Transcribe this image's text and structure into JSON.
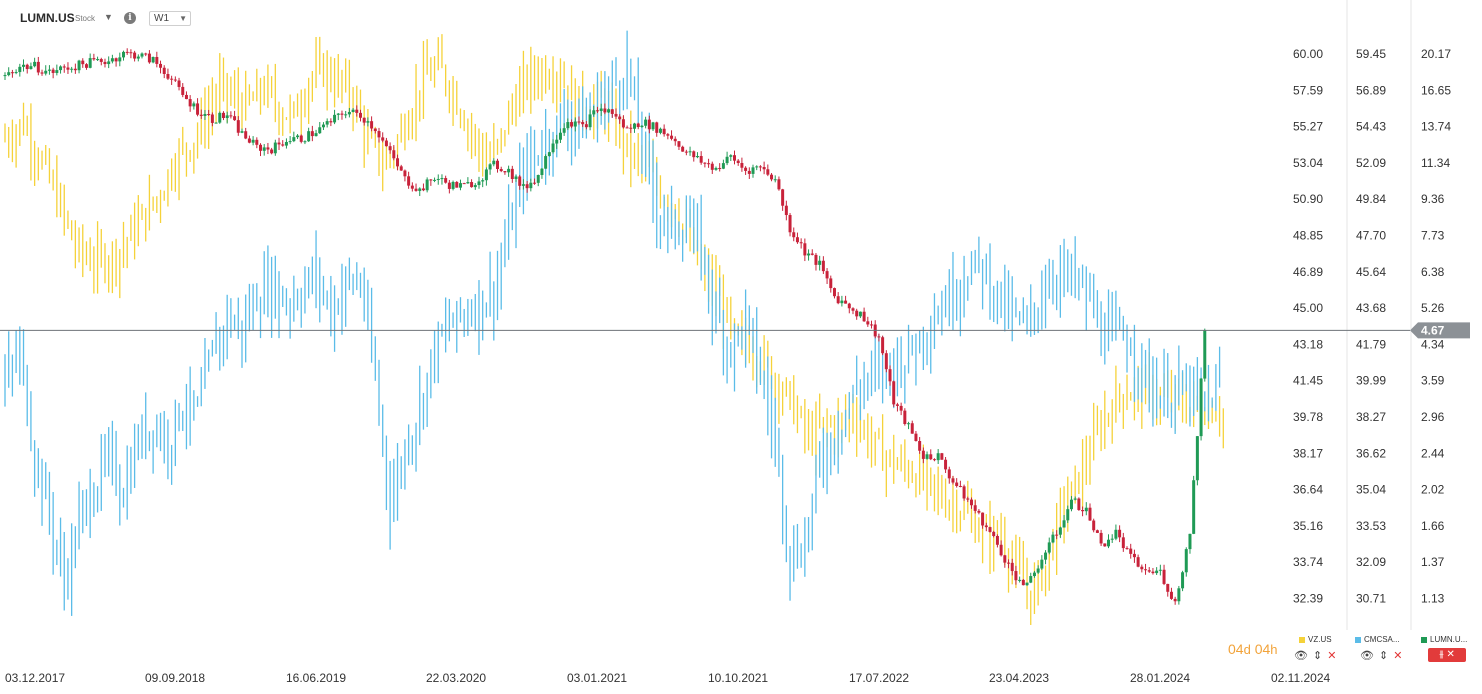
{
  "header": {
    "symbol": "LUMN.US",
    "asset_type": "Stock",
    "timeframe": "W1"
  },
  "countdown": {
    "days": "04",
    "day_unit": "d",
    "hours": "04",
    "hour_unit": "h"
  },
  "colors": {
    "vz": "#f5d23a",
    "cmcsa": "#5bbce8",
    "up": "#1f9a55",
    "down": "#c8223a",
    "bg": "#ffffff",
    "last_label": "#8c9196"
  },
  "chart_data": {
    "type": "line",
    "title": "",
    "x_ticks": [
      "03.12.2017",
      "09.09.2018",
      "16.06.2019",
      "22.03.2020",
      "03.01.2021",
      "10.10.2021",
      "17.07.2022",
      "23.04.2023",
      "28.01.2024",
      "02.11.2024"
    ],
    "axes": [
      {
        "series": "VZ.US",
        "ticks": [
          "60.00",
          "57.59",
          "55.27",
          "53.04",
          "50.90",
          "48.85",
          "46.89",
          "45.00",
          "43.18",
          "41.45",
          "39.78",
          "38.17",
          "36.64",
          "35.16",
          "33.74",
          "32.39"
        ]
      },
      {
        "series": "CMCSA.US",
        "ticks": [
          "59.45",
          "56.89",
          "54.43",
          "52.09",
          "49.84",
          "47.70",
          "45.64",
          "43.68",
          "41.79",
          "39.99",
          "38.27",
          "36.62",
          "35.04",
          "33.53",
          "32.09",
          "30.71"
        ]
      },
      {
        "series": "LUMN.US",
        "ticks": [
          "20.17",
          "16.65",
          "13.74",
          "11.34",
          "9.36",
          "7.73",
          "6.38",
          "5.26",
          "4.34",
          "3.59",
          "2.96",
          "2.44",
          "2.02",
          "1.66",
          "1.37",
          "1.13"
        ]
      }
    ],
    "last_price": {
      "series": "LUMN.US",
      "value": "4.67"
    },
    "legend": [
      "VZ.US",
      "CMCSA...",
      "LUMN.U..."
    ],
    "series": [
      {
        "name": "VZ.US",
        "style": "ohlc-bars",
        "points": [
          [
            0,
            54.5
          ],
          [
            5,
            55.5
          ],
          [
            9,
            53.5
          ],
          [
            14,
            51.0
          ],
          [
            19,
            48.2
          ],
          [
            24,
            47.4
          ],
          [
            30,
            47.8
          ],
          [
            36,
            49.5
          ],
          [
            42,
            51.3
          ],
          [
            46,
            53.3
          ],
          [
            50,
            54.2
          ],
          [
            54,
            55.8
          ],
          [
            58,
            57.8
          ],
          [
            62,
            57.0
          ],
          [
            66,
            56.6
          ],
          [
            70,
            57.7
          ],
          [
            74,
            56.4
          ],
          [
            78,
            55.9
          ],
          [
            82,
            58.3
          ],
          [
            86,
            58.9
          ],
          [
            90,
            58.1
          ],
          [
            94,
            57.2
          ],
          [
            98,
            54.3
          ],
          [
            102,
            53.0
          ],
          [
            106,
            54.3
          ],
          [
            109,
            56.2
          ],
          [
            113,
            58.3
          ],
          [
            117,
            59.1
          ],
          [
            121,
            57.5
          ],
          [
            125,
            55.4
          ],
          [
            129,
            53.4
          ],
          [
            133,
            53.9
          ],
          [
            137,
            56.6
          ],
          [
            141,
            58.2
          ],
          [
            145,
            58.9
          ],
          [
            149,
            58.9
          ],
          [
            153,
            57.3
          ],
          [
            157,
            56.4
          ],
          [
            161,
            56.8
          ],
          [
            165,
            55.2
          ],
          [
            169,
            53.6
          ],
          [
            173,
            52.9
          ],
          [
            177,
            51.4
          ],
          [
            181,
            50.6
          ],
          [
            185,
            48.2
          ],
          [
            189,
            46.7
          ],
          [
            193,
            45.5
          ],
          [
            197,
            43.4
          ],
          [
            201,
            43.1
          ],
          [
            205,
            42.3
          ],
          [
            209,
            41.4
          ],
          [
            213,
            40.2
          ],
          [
            217,
            38.8
          ],
          [
            221,
            39.4
          ],
          [
            225,
            39.4
          ],
          [
            229,
            40.0
          ],
          [
            233,
            38.9
          ],
          [
            237,
            38.1
          ],
          [
            241,
            37.7
          ],
          [
            245,
            37.4
          ],
          [
            249,
            36.8
          ],
          [
            253,
            36.3
          ],
          [
            257,
            36.1
          ],
          [
            261,
            35.4
          ],
          [
            265,
            34.7
          ],
          [
            269,
            34.8
          ],
          [
            273,
            33.4
          ],
          [
            277,
            32.5
          ],
          [
            281,
            33.6
          ],
          [
            285,
            35.6
          ],
          [
            289,
            36.8
          ],
          [
            293,
            38.3
          ],
          [
            297,
            39.8
          ],
          [
            301,
            40.8
          ],
          [
            305,
            41.0
          ],
          [
            309,
            40.9
          ],
          [
            313,
            40.6
          ],
          [
            317,
            40.4
          ],
          [
            321,
            40.2
          ],
          [
            325,
            40.3
          ],
          [
            329,
            39.9
          ]
        ]
      },
      {
        "name": "CMCSA.US",
        "style": "ohlc-bars",
        "points": [
          [
            0,
            39.9
          ],
          [
            4,
            41.4
          ],
          [
            8,
            36.5
          ],
          [
            12,
            34.0
          ],
          [
            16,
            31.3
          ],
          [
            20,
            33.7
          ],
          [
            24,
            35.2
          ],
          [
            28,
            36.3
          ],
          [
            32,
            35.0
          ],
          [
            36,
            37.2
          ],
          [
            40,
            38.0
          ],
          [
            44,
            37.2
          ],
          [
            48,
            38.9
          ],
          [
            52,
            38.4
          ],
          [
            56,
            41.4
          ],
          [
            60,
            43.2
          ],
          [
            64,
            42.5
          ],
          [
            68,
            44.3
          ],
          [
            72,
            44.9
          ],
          [
            76,
            44.0
          ],
          [
            80,
            44.6
          ],
          [
            84,
            45.5
          ],
          [
            88,
            43.5
          ],
          [
            92,
            45.0
          ],
          [
            96,
            45.1
          ],
          [
            100,
            40.0
          ],
          [
            104,
            34.5
          ],
          [
            108,
            36.8
          ],
          [
            112,
            38.8
          ],
          [
            116,
            41.6
          ],
          [
            120,
            42.7
          ],
          [
            124,
            43.4
          ],
          [
            128,
            44.0
          ],
          [
            132,
            44.6
          ],
          [
            136,
            47.9
          ],
          [
            140,
            51.7
          ],
          [
            144,
            52.8
          ],
          [
            148,
            54.2
          ],
          [
            152,
            55.0
          ],
          [
            156,
            54.6
          ],
          [
            160,
            55.9
          ],
          [
            164,
            57.1
          ],
          [
            168,
            58.5
          ],
          [
            172,
            53.4
          ],
          [
            176,
            49.5
          ],
          [
            180,
            48.1
          ],
          [
            184,
            48.5
          ],
          [
            188,
            46.9
          ],
          [
            192,
            43.2
          ],
          [
            196,
            41.6
          ],
          [
            200,
            43.0
          ],
          [
            204,
            40.3
          ],
          [
            208,
            37.3
          ],
          [
            212,
            32.2
          ],
          [
            216,
            32.9
          ],
          [
            220,
            36.2
          ],
          [
            224,
            37.4
          ],
          [
            228,
            39.1
          ],
          [
            232,
            40.0
          ],
          [
            236,
            40.5
          ],
          [
            240,
            40.8
          ],
          [
            244,
            41.3
          ],
          [
            248,
            42.5
          ],
          [
            252,
            43.5
          ],
          [
            256,
            44.6
          ],
          [
            260,
            45.8
          ],
          [
            264,
            45.9
          ],
          [
            268,
            44.4
          ],
          [
            272,
            43.2
          ],
          [
            276,
            42.6
          ],
          [
            280,
            44.6
          ],
          [
            284,
            45.7
          ],
          [
            288,
            45.3
          ],
          [
            292,
            44.4
          ],
          [
            296,
            42.5
          ],
          [
            300,
            42.2
          ],
          [
            304,
            41.9
          ],
          [
            308,
            40.2
          ],
          [
            312,
            39.3
          ],
          [
            316,
            39.5
          ],
          [
            320,
            39.5
          ],
          [
            324,
            38.7
          ],
          [
            328,
            39.9
          ]
        ]
      },
      {
        "name": "LUMN.US",
        "style": "candles",
        "up_color": "#1f9a55",
        "down_color": "#c8223a",
        "points": [
          [
            0,
            18.0
          ],
          [
            4,
            18.9
          ],
          [
            8,
            18.9
          ],
          [
            12,
            18.3
          ],
          [
            16,
            18.7
          ],
          [
            20,
            19.0
          ],
          [
            24,
            19.4
          ],
          [
            28,
            19.5
          ],
          [
            32,
            20.2
          ],
          [
            36,
            20.1
          ],
          [
            40,
            19.5
          ],
          [
            44,
            18.1
          ],
          [
            48,
            16.2
          ],
          [
            52,
            15.0
          ],
          [
            56,
            14.3
          ],
          [
            60,
            14.6
          ],
          [
            64,
            13.2
          ],
          [
            68,
            12.3
          ],
          [
            72,
            12.2
          ],
          [
            76,
            12.8
          ],
          [
            80,
            12.9
          ],
          [
            84,
            13.4
          ],
          [
            88,
            14.1
          ],
          [
            92,
            14.9
          ],
          [
            96,
            14.6
          ],
          [
            100,
            13.6
          ],
          [
            104,
            11.9
          ],
          [
            108,
            10.4
          ],
          [
            112,
            9.8
          ],
          [
            116,
            10.5
          ],
          [
            120,
            10.1
          ],
          [
            124,
            10.0
          ],
          [
            128,
            10.4
          ],
          [
            132,
            11.2
          ],
          [
            136,
            10.9
          ],
          [
            140,
            9.9
          ],
          [
            144,
            10.6
          ],
          [
            148,
            12.8
          ],
          [
            152,
            14.2
          ],
          [
            156,
            13.7
          ],
          [
            160,
            15.1
          ],
          [
            164,
            14.8
          ],
          [
            168,
            13.5
          ],
          [
            172,
            14.1
          ],
          [
            176,
            13.6
          ],
          [
            180,
            13.0
          ],
          [
            184,
            12.0
          ],
          [
            188,
            11.4
          ],
          [
            192,
            11.0
          ],
          [
            196,
            11.7
          ],
          [
            200,
            10.9
          ],
          [
            204,
            11.1
          ],
          [
            208,
            10.4
          ],
          [
            212,
            8.0
          ],
          [
            216,
            7.1
          ],
          [
            220,
            6.6
          ],
          [
            224,
            5.6
          ],
          [
            228,
            5.3
          ],
          [
            232,
            5.0
          ],
          [
            236,
            4.5
          ],
          [
            240,
            3.2
          ],
          [
            244,
            2.8
          ],
          [
            248,
            2.4
          ],
          [
            252,
            2.4
          ],
          [
            256,
            2.1
          ],
          [
            260,
            1.9
          ],
          [
            264,
            1.7
          ],
          [
            268,
            1.5
          ],
          [
            272,
            1.3
          ],
          [
            276,
            1.2
          ],
          [
            280,
            1.4
          ],
          [
            284,
            1.6
          ],
          [
            288,
            1.9
          ],
          [
            292,
            1.8
          ],
          [
            296,
            1.5
          ],
          [
            300,
            1.6
          ],
          [
            304,
            1.4
          ],
          [
            308,
            1.3
          ],
          [
            312,
            1.3
          ],
          [
            316,
            1.1
          ],
          [
            320,
            1.6
          ],
          [
            324,
            4.67
          ]
        ]
      }
    ]
  }
}
